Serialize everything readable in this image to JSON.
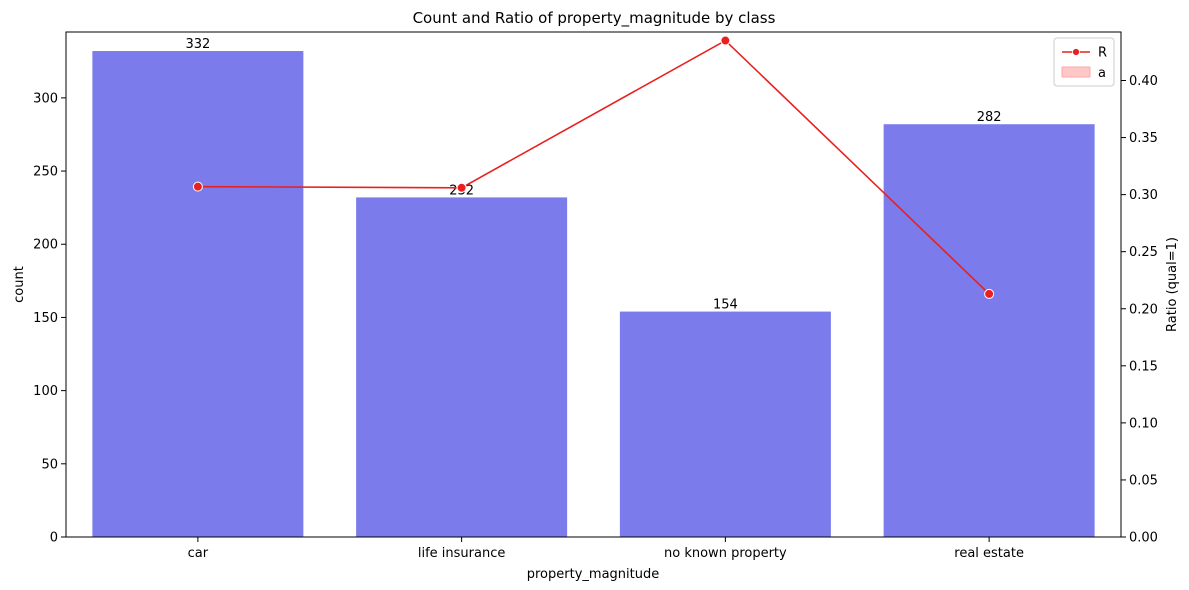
{
  "chart_data": {
    "type": "bar",
    "title": "Count and Ratio of property_magnitude by class",
    "xlabel": "property_magnitude",
    "ylabel": "count",
    "ylabel_right": "Ratio (qual=1)",
    "categories": [
      "car",
      "life insurance",
      "no known property",
      "real estate"
    ],
    "series": [
      {
        "name": "a",
        "type": "bar",
        "axis": "left",
        "values": [
          332,
          232,
          154,
          282
        ]
      },
      {
        "name": "R",
        "type": "line",
        "axis": "right",
        "values": [
          0.307,
          0.306,
          0.435,
          0.213
        ]
      }
    ],
    "ylim": [
      0,
      345
    ],
    "y_ticks": [
      0,
      50,
      100,
      150,
      200,
      250,
      300
    ],
    "ylim_right": [
      0,
      0.4425
    ],
    "y_ticks_right": [
      "0.00",
      "0.05",
      "0.10",
      "0.15",
      "0.20",
      "0.25",
      "0.30",
      "0.35",
      "0.40"
    ],
    "bar_labels": [
      "332",
      "232",
      "154",
      "282"
    ],
    "legend": {
      "placement": "top-right",
      "entries": [
        "R",
        "a"
      ]
    },
    "grid": false,
    "colors": {
      "bar": "#7b7bec",
      "line": "#e8201f",
      "legend_patch": "#ffc8c8",
      "legend_patch_edge": "#ff9a9a"
    }
  }
}
